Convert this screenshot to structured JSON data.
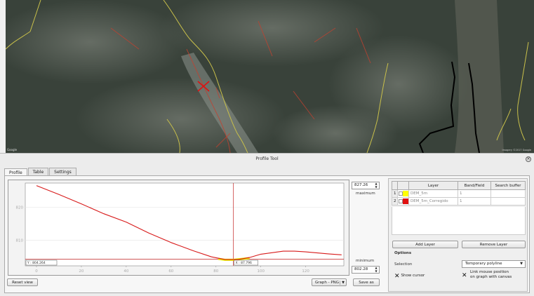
{
  "map": {
    "logo": "Google",
    "attribution": "Imagery ©2017 Google"
  },
  "window": {
    "title": "Profile Tool"
  },
  "tabs": [
    {
      "label": "Profile",
      "active": true
    },
    {
      "label": "Table",
      "active": false
    },
    {
      "label": "Settings",
      "active": false
    }
  ],
  "graph": {
    "y_ticks": [
      "820",
      "810"
    ],
    "x_ticks": [
      "0",
      "20",
      "40",
      "60",
      "80",
      "100",
      "120"
    ],
    "readout_left": "Y : 804.264",
    "readout_right": "X : 87.796",
    "colors": {
      "profile1": "#e8e800",
      "profile2": "#d81a1a",
      "cursor": "#c02020"
    },
    "series": [
      {
        "layer": "DEM_5m",
        "color": "#e8e800",
        "points": [
          [
            81,
            804.4
          ],
          [
            84,
            804.1
          ],
          [
            88,
            804.1
          ],
          [
            92,
            804.4
          ],
          [
            95,
            804.6
          ]
        ]
      },
      {
        "layer": "DEM_5m_Corregido",
        "color": "#d81a1a",
        "points": [
          [
            0,
            826.5
          ],
          [
            10,
            823.8
          ],
          [
            20,
            821.0
          ],
          [
            30,
            818.0
          ],
          [
            40,
            815.5
          ],
          [
            50,
            812.2
          ],
          [
            60,
            809.3
          ],
          [
            70,
            806.8
          ],
          [
            78,
            805.0
          ],
          [
            84,
            804.2
          ],
          [
            90,
            804.2
          ],
          [
            95,
            804.8
          ],
          [
            100,
            805.8
          ],
          [
            110,
            806.7
          ],
          [
            115,
            806.7
          ],
          [
            120,
            806.5
          ],
          [
            130,
            805.9
          ],
          [
            136,
            805.6
          ]
        ]
      }
    ],
    "cursor_x": 87.796,
    "cursor_y": 804.264
  },
  "range": {
    "max_value": "827.26",
    "max_label": "maximum",
    "min_label": "minimum",
    "min_value": "802.28"
  },
  "buttons": {
    "reset": "Reset view",
    "graph_format": "Graph - PNG",
    "save": "Save as"
  },
  "layers_table": {
    "headers": [
      "",
      "",
      "Layer",
      "Band/Field",
      "Search buffer"
    ],
    "rows": [
      {
        "num": "1",
        "color": "#ffff00",
        "name": "DEM_5m",
        "band": "1",
        "buffer": ""
      },
      {
        "num": "2",
        "color": "#e01010",
        "name": "DEM_5m_Corregido",
        "band": "1",
        "buffer": ""
      }
    ]
  },
  "layer_buttons": {
    "add": "Add Layer",
    "remove": "Remove Layer"
  },
  "options": {
    "title": "Options",
    "selection_label": "Selection",
    "selection_value": "Temporary polyline",
    "show_cursor": "Show cursor",
    "link_mouse": "Link mouse position",
    "link_mouse_2": "on graph with canvas"
  }
}
